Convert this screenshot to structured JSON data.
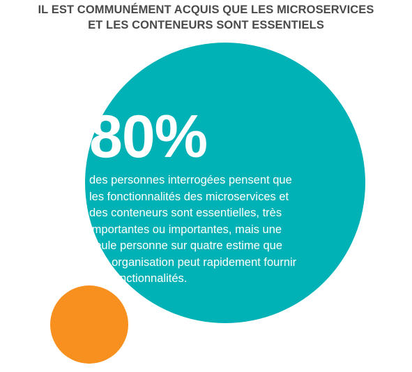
{
  "title": {
    "line1": "IL EST COMMUNÉMENT ACQUIS QUE LES MICROSERVICES",
    "line2": "ET LES CONTENEURS SONT ESSENTIELS"
  },
  "stat": {
    "value": "80%",
    "lines": [
      "des personnes interrogées pensent que",
      "les fonctionnalités des microservices et",
      "des conteneurs sont essentielles, très",
      "importantes ou importantes, mais une",
      "seule personne sur quatre estime que",
      "leur organisation peut rapidement fournir",
      "ces fonctionnalités."
    ]
  },
  "colors": {
    "title": "#4a4a4a",
    "big_circle": "#00b2b6",
    "small_circle": "#f7901e",
    "overlap": "#0f6e26",
    "text_on_circle": "#ffffff"
  }
}
